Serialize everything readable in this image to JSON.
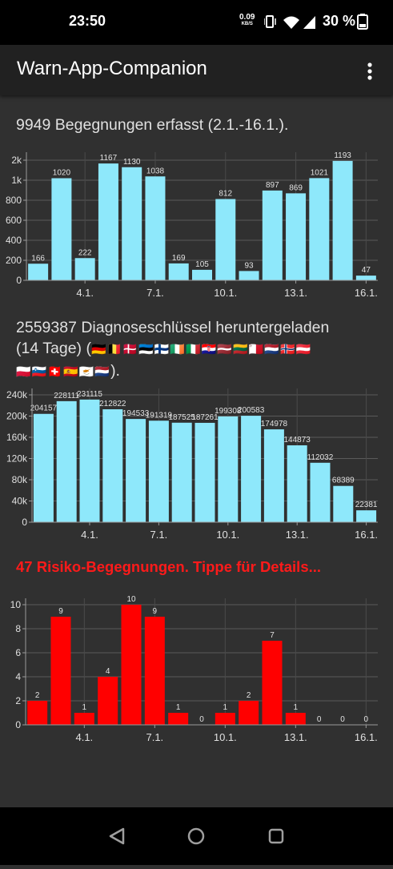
{
  "status_bar": {
    "time": "23:50",
    "net_speed": "0.09",
    "net_speed_unit": "KB/S",
    "battery": "30 %",
    "icons": [
      "vibrate-icon",
      "wifi-icon",
      "signal-icon",
      "battery-icon"
    ]
  },
  "app_bar": {
    "title": "Warn-App-Companion",
    "menu_icon": "more-vert-icon"
  },
  "sections": {
    "encounters": "9949 Begegnungen erfasst (2.1.-16.1.).",
    "keys_line1": "2559387 Diagnoseschlüssel heruntergeladen",
    "keys_line2": "(14 Tage) (",
    "keys_line3_end": ").",
    "risk": "47 Risiko-Begegnungen. Tippe für Details..."
  },
  "flags": {
    "line2": "🇩🇪🇧🇪🇩🇰🇪🇪🇫🇮🇮🇪🇮🇹🇭🇷🇱🇻🇱🇹🇲🇹🇳🇱🇳🇴🇦🇹",
    "line3": "🇵🇱🇸🇮🇨🇭🇪🇸🇨🇾🇳🇱"
  },
  "colors": {
    "bar_blue": "#8ee8fb",
    "bar_red": "#ff0000",
    "risk_heading": "#ff1a1a"
  },
  "nav_bar": [
    "back-icon",
    "home-icon",
    "recents-icon"
  ],
  "chart_data": [
    {
      "type": "bar",
      "title": "9949 Begegnungen erfasst (2.1.-16.1.).",
      "x_ticks": [
        "4.1.",
        "7.1.",
        "10.1.",
        "13.1.",
        "16.1."
      ],
      "y_ticks": [
        "0",
        "200",
        "400",
        "600",
        "800",
        "1k",
        "2k"
      ],
      "values": [
        166,
        1020,
        222,
        1167,
        1130,
        1038,
        169,
        105,
        812,
        93,
        897,
        869,
        1021,
        1193,
        47
      ],
      "data_labels": [
        "166",
        "1020",
        "222",
        "1167",
        "1130",
        "1038",
        "169",
        "105",
        "812",
        "93",
        "897",
        "869",
        "1021",
        "1193",
        "47"
      ],
      "color": "#8ee8fb"
    },
    {
      "type": "bar",
      "title": "2559387 Diagnoseschlüssel heruntergeladen (14 Tage)",
      "x_ticks": [
        "4.1.",
        "7.1.",
        "10.1.",
        "13.1.",
        "16.1."
      ],
      "y_ticks": [
        "0",
        "40k",
        "80k",
        "120k",
        "160k",
        "200k",
        "240k"
      ],
      "ylim": [
        0,
        240000
      ],
      "values": [
        204157,
        228111,
        231115,
        212822,
        194533,
        191319,
        187525,
        187261,
        199308,
        200583,
        174978,
        144873,
        112032,
        68389,
        22381
      ],
      "data_labels": [
        "204157",
        "228111",
        "231115",
        "212822",
        "194533",
        "191319",
        "187525",
        "187261",
        "199308",
        "200583",
        "174978",
        "144873",
        "112032",
        "68389",
        "22381"
      ],
      "color": "#8ee8fb"
    },
    {
      "type": "bar",
      "title": "47 Risiko-Begegnungen. Tippe für Details...",
      "x_ticks": [
        "4.1.",
        "7.1.",
        "10.1.",
        "13.1.",
        "16.1."
      ],
      "y_ticks": [
        "0",
        "2",
        "4",
        "6",
        "8",
        "10"
      ],
      "ylim": [
        0,
        10
      ],
      "values": [
        2,
        9,
        1,
        4,
        10,
        9,
        1,
        0,
        1,
        2,
        7,
        1,
        0,
        0,
        0
      ],
      "data_labels": [
        "2",
        "9",
        "1",
        "4",
        "10",
        "9",
        "1",
        "0",
        "1",
        "2",
        "7",
        "1",
        "0",
        "0",
        "0"
      ],
      "color": "#ff0000"
    }
  ]
}
